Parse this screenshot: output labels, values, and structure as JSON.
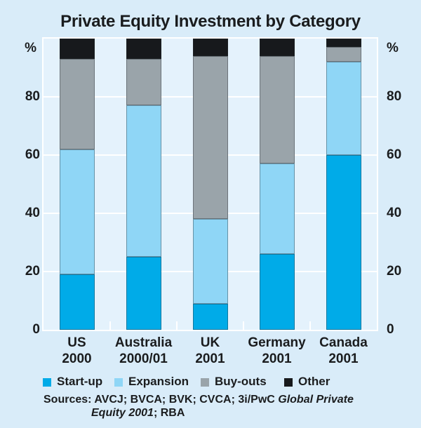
{
  "title": "Private Equity Investment by Category",
  "axis": {
    "unit": "%",
    "ticks": [
      0,
      20,
      40,
      60,
      80
    ],
    "max": 100
  },
  "legend": [
    {
      "label": "Start-up",
      "color_key": "startup"
    },
    {
      "label": "Expansion",
      "color_key": "expansion"
    },
    {
      "label": "Buy-outs",
      "color_key": "buyouts"
    },
    {
      "label": "Other",
      "color_key": "other"
    }
  ],
  "sources": {
    "line1_normal": "Sources: AVCJ; BVCA; BVK; CVCA; 3i/PwC ",
    "line1_italic": "Global Private",
    "line2_italic": "Equity 2001",
    "line2_normal": "; RBA"
  },
  "colors": {
    "startup": "#00ABE8",
    "expansion": "#8FD6F6",
    "buyouts": "#9AA4AA",
    "other": "#17191C",
    "background": "#D9ECF9",
    "plot_background": "#E4F2FC",
    "grid": "#FFFFFF",
    "text": "#1A1C1E"
  },
  "chart_data": {
    "type": "bar",
    "stacked": true,
    "title": "Private Equity Investment by Category",
    "ylabel": "%",
    "ylim": [
      0,
      100
    ],
    "grid": true,
    "legend_position": "bottom",
    "categories": [
      {
        "name": "US",
        "period": "2000"
      },
      {
        "name": "Australia",
        "period": "2000/01"
      },
      {
        "name": "UK",
        "period": "2001"
      },
      {
        "name": "Germany",
        "period": "2001"
      },
      {
        "name": "Canada",
        "period": "2001"
      }
    ],
    "series": [
      {
        "name": "Start-up",
        "color_key": "startup",
        "values": [
          19,
          25,
          9,
          26,
          60
        ]
      },
      {
        "name": "Expansion",
        "color_key": "expansion",
        "values": [
          43,
          52,
          29,
          31,
          32
        ]
      },
      {
        "name": "Buy-outs",
        "color_key": "buyouts",
        "values": [
          31,
          16,
          56,
          37,
          5
        ]
      },
      {
        "name": "Other",
        "color_key": "other",
        "values": [
          7,
          7,
          6,
          6,
          3
        ]
      }
    ]
  }
}
